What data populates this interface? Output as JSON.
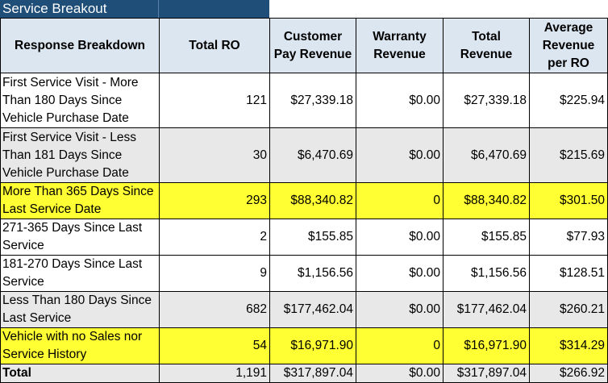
{
  "title": "Service Breakout",
  "headers": [
    "Response Breakdown",
    "Total RO",
    "Customer Pay Revenue",
    "Warranty Revenue",
    "Total Revenue",
    "Average Revenue per RO"
  ],
  "rows": [
    {
      "label": "First Service Visit - More Than 180 Days Since Vehicle Purchase Date",
      "total_ro": "121",
      "customer_pay": "$27,339.18",
      "warranty": "$0.00",
      "total_revenue": "$27,339.18",
      "avg_revenue": "$225.94",
      "style": "white",
      "tall": true
    },
    {
      "label": "First Service Visit - Less Than 181 Days Since Vehicle Purchase Date",
      "total_ro": "30",
      "customer_pay": "$6,470.69",
      "warranty": "$0.00",
      "total_revenue": "$6,470.69",
      "avg_revenue": "$215.69",
      "style": "gray",
      "tall": true
    },
    {
      "label": "More Than 365 Days Since Last Service Date",
      "total_ro": "293",
      "customer_pay": "$88,340.82",
      "warranty": "0",
      "total_revenue": "$88,340.82",
      "avg_revenue": "$301.50",
      "style": "yellow",
      "tall": false
    },
    {
      "label": "271-365 Days Since Last Service",
      "total_ro": "2",
      "customer_pay": "$155.85",
      "warranty": "$0.00",
      "total_revenue": "$155.85",
      "avg_revenue": "$77.93",
      "style": "white",
      "tall": false
    },
    {
      "label": "181-270 Days Since Last Service",
      "total_ro": "9",
      "customer_pay": "$1,156.56",
      "warranty": "$0.00",
      "total_revenue": "$1,156.56",
      "avg_revenue": "$128.51",
      "style": "white",
      "tall": false
    },
    {
      "label": "Less Than 180 Days Since Last Service",
      "total_ro": "682",
      "customer_pay": "$177,462.04",
      "warranty": "$0.00",
      "total_revenue": "$177,462.04",
      "avg_revenue": "$260.21",
      "style": "gray",
      "tall": false
    },
    {
      "label": "Vehicle with no Sales nor Service History",
      "total_ro": "54",
      "customer_pay": "$16,971.90",
      "warranty": "0",
      "total_revenue": "$16,971.90",
      "avg_revenue": "$314.29",
      "style": "yellow",
      "tall": false
    }
  ],
  "total": {
    "label": "Total",
    "total_ro": "1,191",
    "customer_pay": "$317,897.04",
    "warranty": "$0.00",
    "total_revenue": "$317,897.04",
    "avg_revenue": "$266.92"
  },
  "colors": {
    "title_bg": "#1f4e79",
    "header_bg": "#dce6f1",
    "highlight": "#ffff33",
    "gray_row": "#e8e8e8"
  }
}
